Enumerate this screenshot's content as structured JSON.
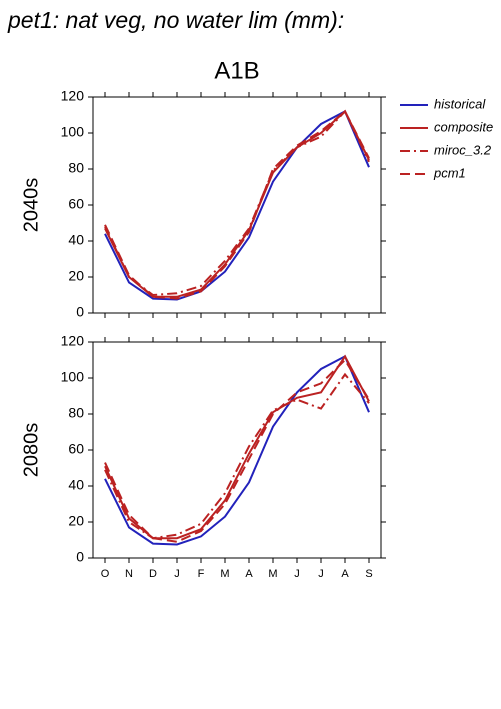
{
  "title": "pet1: nat veg, no water lim (mm):",
  "subtitle": "A1B",
  "chart_data": [
    {
      "type": "line",
      "ylabel": "2040s",
      "categories": [
        null,
        null,
        null,
        null,
        null,
        null,
        null,
        null,
        null,
        null,
        null,
        null
      ],
      "ylim": [
        0,
        120
      ],
      "yticks": [
        0,
        20,
        40,
        60,
        80,
        100,
        120
      ],
      "legend": "right",
      "series": [
        {
          "name": "historical",
          "color": "#2222bb",
          "dash": "solid",
          "values": [
            44,
            17,
            8,
            7.5,
            12,
            23,
            42,
            73,
            92,
            105,
            112,
            81
          ]
        },
        {
          "name": "composite",
          "color": "#bb2222",
          "dash": "solid",
          "values": [
            47,
            20,
            9,
            9,
            13,
            27,
            46,
            78,
            92,
            100,
            112,
            85
          ]
        },
        {
          "name": "miroc_3.2",
          "color": "#bb2222",
          "dash": "dashdot",
          "values": [
            48,
            20,
            10,
            11,
            15,
            29,
            47,
            79,
            92,
            98,
            112,
            84
          ]
        },
        {
          "name": "pcm1",
          "color": "#bb2222",
          "dash": "dash",
          "values": [
            49,
            21,
            9,
            8,
            12,
            26,
            45,
            80,
            93,
            101,
            112,
            86
          ]
        }
      ]
    },
    {
      "type": "line",
      "ylabel": "2080s",
      "categories": [
        "O",
        "N",
        "D",
        "J",
        "F",
        "M",
        "A",
        "M",
        "J",
        "J",
        "A",
        "S"
      ],
      "ylim": [
        0,
        120
      ],
      "yticks": [
        0,
        20,
        40,
        60,
        80,
        100,
        120
      ],
      "series": [
        {
          "color": "#2222bb",
          "dash": "solid",
          "values": [
            44,
            17,
            8,
            7.5,
            12,
            23,
            42,
            73,
            92,
            105,
            112,
            81
          ]
        },
        {
          "color": "#bb2222",
          "dash": "solid",
          "values": [
            51,
            22,
            11,
            11,
            16,
            32,
            58,
            81,
            89,
            92,
            112,
            87
          ]
        },
        {
          "color": "#bb2222",
          "dash": "dashdot",
          "values": [
            49,
            20,
            11,
            13,
            19,
            36,
            62,
            82,
            88,
            83,
            102,
            86
          ]
        },
        {
          "color": "#bb2222",
          "dash": "dash",
          "values": [
            53,
            24,
            11,
            9,
            15,
            30,
            55,
            80,
            92,
            97,
            110,
            88
          ]
        }
      ]
    }
  ]
}
